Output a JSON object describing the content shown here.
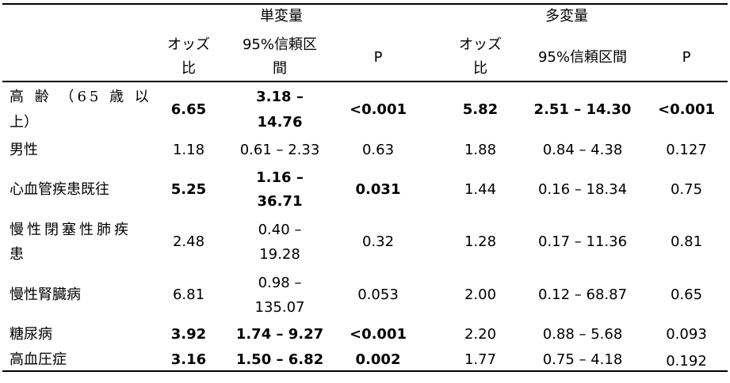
{
  "header": {
    "group_uni": "単変量",
    "group_multi": "多変量",
    "uni_or_line1": "オッズ",
    "uni_or_line2": "比",
    "uni_ci_line1": "95%信頼区",
    "uni_ci_line2": "間",
    "uni_p": "P",
    "multi_or_line1": "オッズ",
    "multi_or_line2": "比",
    "multi_ci": "95%信頼区間",
    "multi_p": "P"
  },
  "rows": [
    {
      "label_line1": "高 齢 （65 歳 以",
      "label_line2": "上）",
      "uni_or": "6.65",
      "uni_ci_line1": "3.18 –",
      "uni_ci_line2": "14.76",
      "uni_p": "<0.001",
      "multi_or": "5.82",
      "multi_ci": "2.51 – 14.30",
      "multi_p": "<0.001"
    },
    {
      "label_line1": "男性",
      "uni_or": "1.18",
      "uni_ci": "0.61 – 2.33",
      "uni_p": "0.63",
      "multi_or": "1.88",
      "multi_ci": "0.84 – 4.38",
      "multi_p": "0.127"
    },
    {
      "label_line1": "心血管疾患既往",
      "uni_or": "5.25",
      "uni_ci_line1": "1.16 –",
      "uni_ci_line2": "36.71",
      "uni_p": "0.031",
      "multi_or": "1.44",
      "multi_ci": "0.16 – 18.34",
      "multi_p": "0.75"
    },
    {
      "label_line1": "慢性閉塞性肺疾",
      "label_line2": "患",
      "uni_or": "2.48",
      "uni_ci_line1": "0.40 –",
      "uni_ci_line2": "19.28",
      "uni_p": "0.32",
      "multi_or": "1.28",
      "multi_ci": "0.17 – 11.36",
      "multi_p": "0.81"
    },
    {
      "label_line1": "慢性腎臓病",
      "uni_or": "6.81",
      "uni_ci_line1": "0.98 –",
      "uni_ci_line2": "135.07",
      "uni_p": "0.053",
      "multi_or": "2.00",
      "multi_ci": "0.12 – 68.87",
      "multi_p": "0.65"
    },
    {
      "label_line1": "糖尿病",
      "uni_or": "3.92",
      "uni_ci": "1.74 – 9.27",
      "uni_p": "<0.001",
      "multi_or": "2.20",
      "multi_ci": "0.88 – 5.68",
      "multi_p": "0.093"
    },
    {
      "label_line1": "高血圧症",
      "uni_or": "3.16",
      "uni_ci": "1.50 – 6.82",
      "uni_p": "0.002",
      "multi_or": "1.77",
      "multi_ci": "0.75 – 4.18",
      "multi_p": "0.192"
    }
  ]
}
